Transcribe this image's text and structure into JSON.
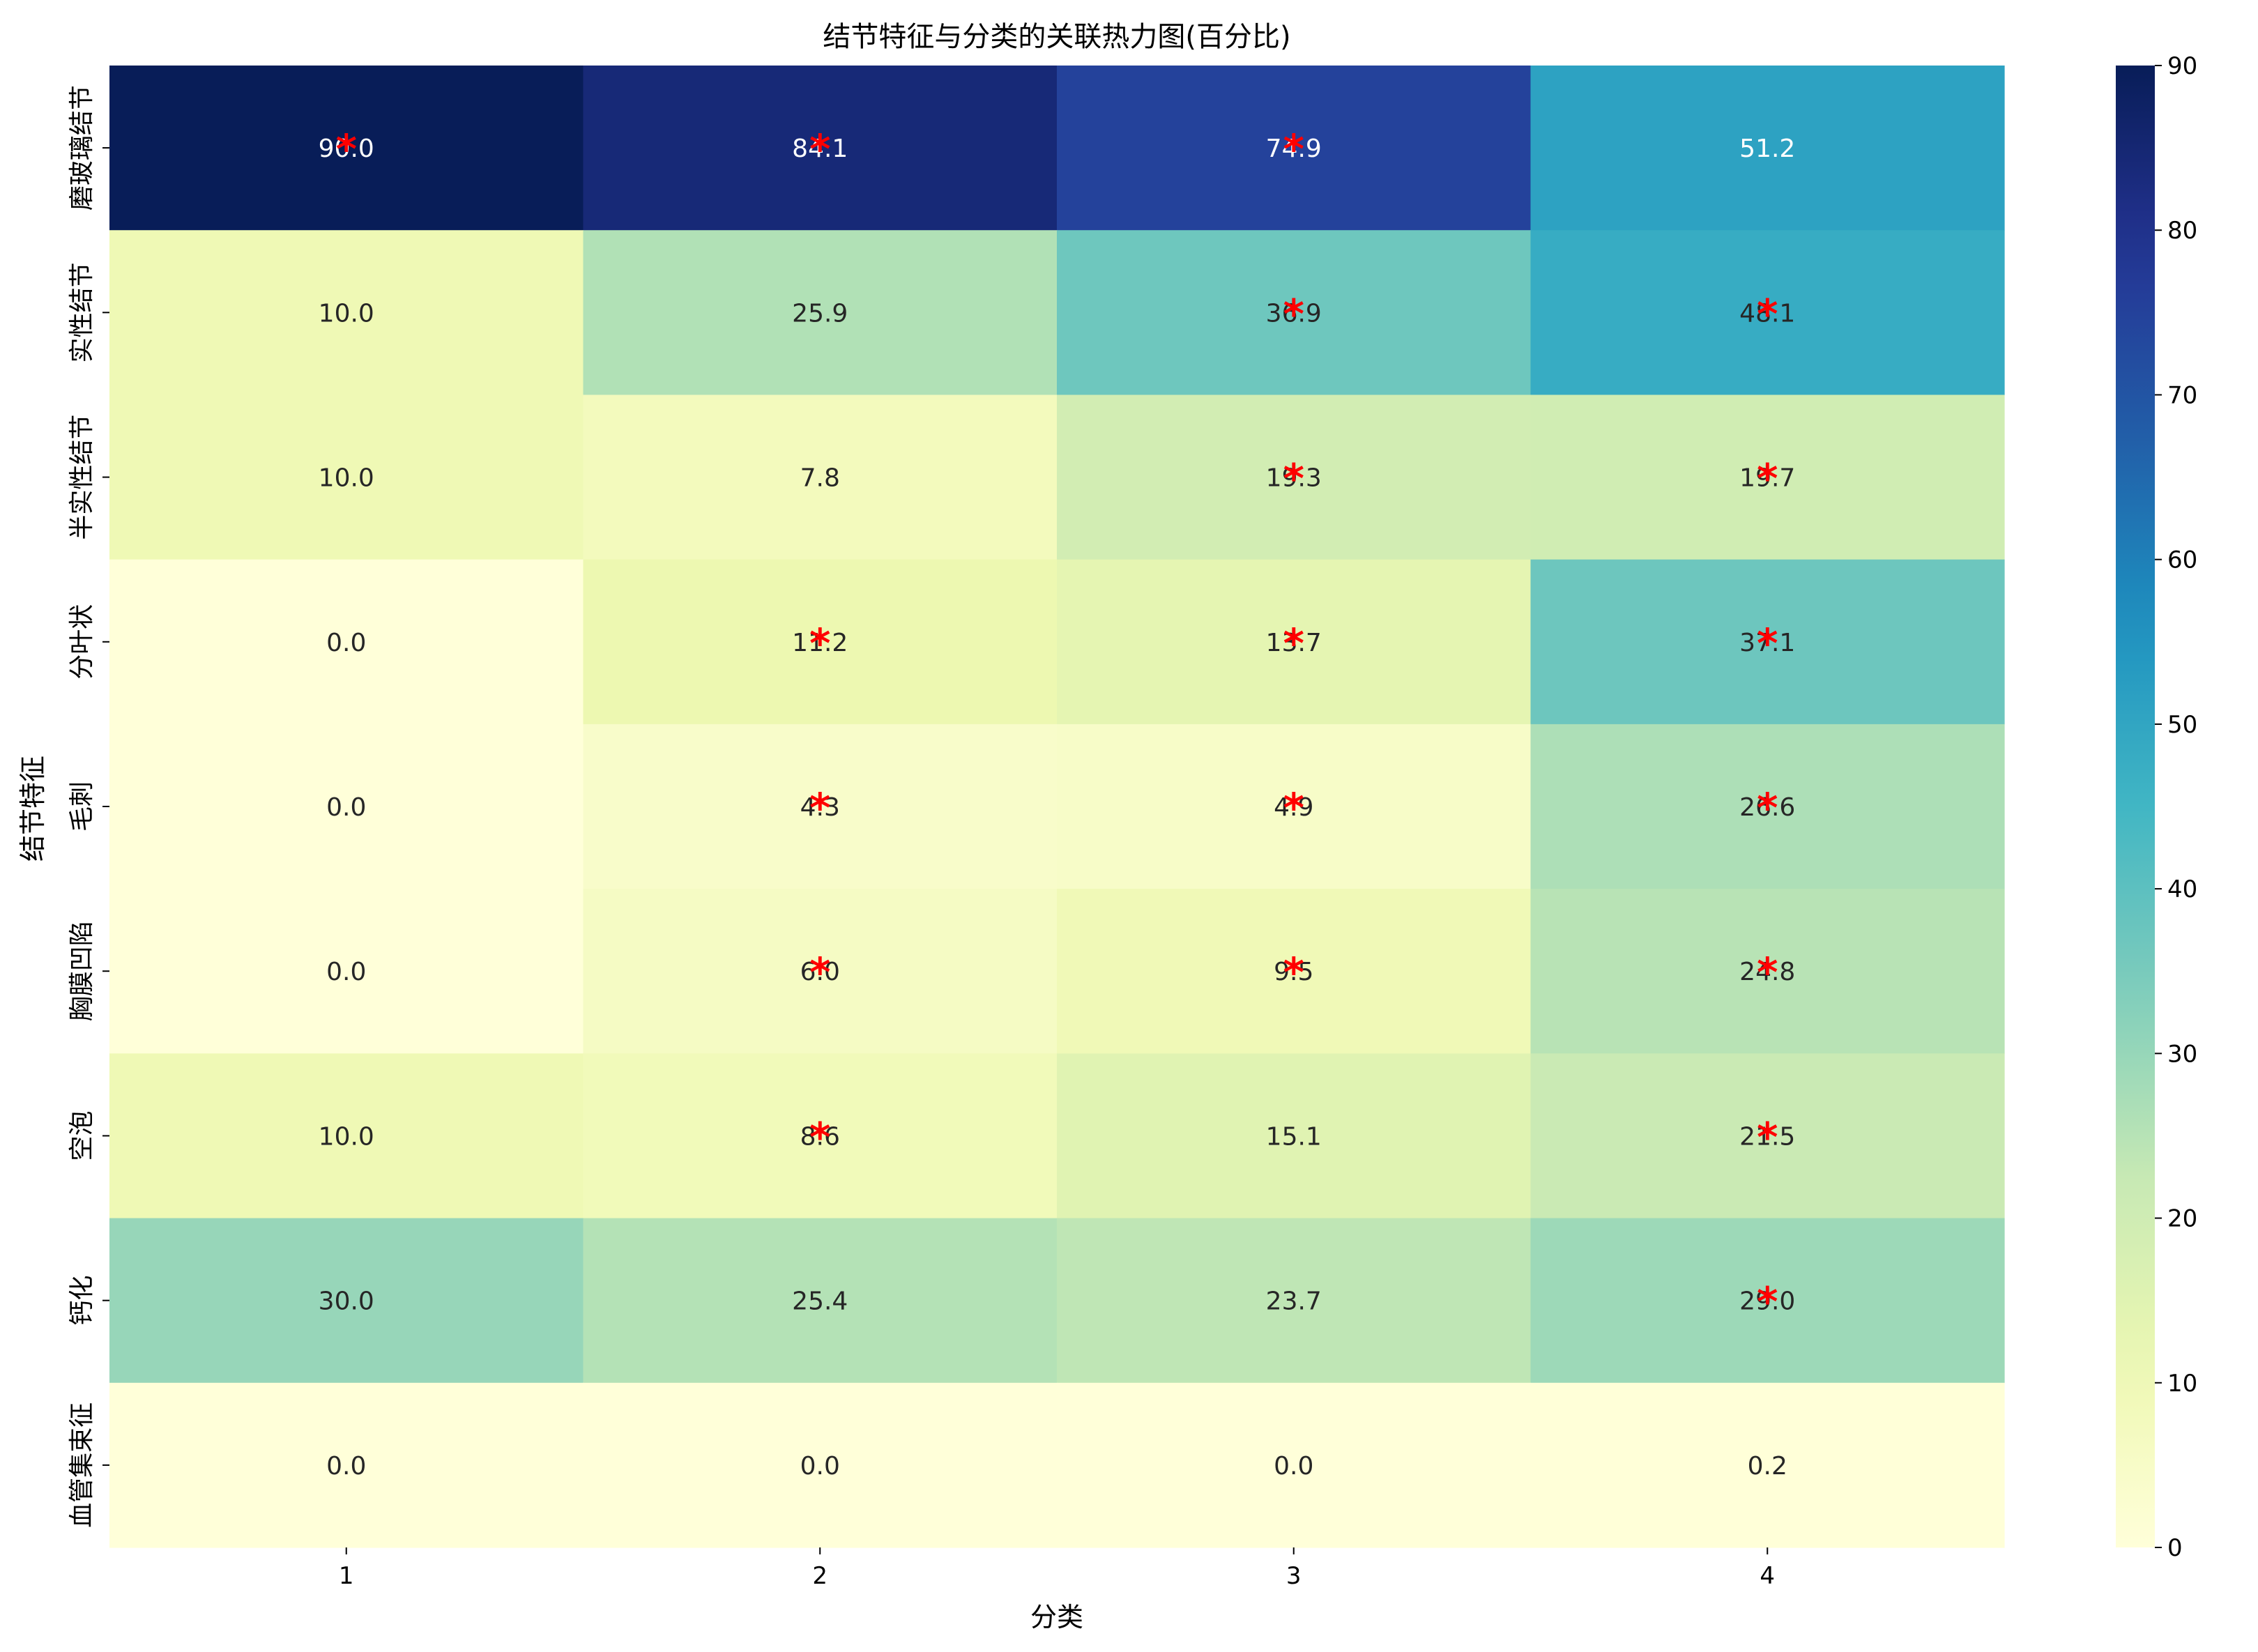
{
  "chart_data": {
    "type": "heatmap",
    "title": "结节特征与分类的关联热力图(百分比)",
    "xlabel": "分类",
    "ylabel": "结节特征",
    "x_categories": [
      "1",
      "2",
      "3",
      "4"
    ],
    "y_categories": [
      "磨玻璃结节",
      "实性结节",
      "半实性结节",
      "分叶状",
      "毛刺",
      "胸膜凹陷",
      "空泡",
      "钙化",
      "血管集束征"
    ],
    "values": [
      [
        90.0,
        84.1,
        74.9,
        51.2
      ],
      [
        10.0,
        25.9,
        36.9,
        48.1
      ],
      [
        10.0,
        7.8,
        19.3,
        19.7
      ],
      [
        0.0,
        11.2,
        13.7,
        37.1
      ],
      [
        0.0,
        4.3,
        4.9,
        26.6
      ],
      [
        0.0,
        6.0,
        9.5,
        24.8
      ],
      [
        10.0,
        8.6,
        15.1,
        21.5
      ],
      [
        30.0,
        25.4,
        23.7,
        29.0
      ],
      [
        0.0,
        0.0,
        0.0,
        0.2
      ]
    ],
    "significance_marker": "*",
    "significant": [
      [
        true,
        true,
        true,
        false
      ],
      [
        false,
        false,
        true,
        true
      ],
      [
        false,
        false,
        true,
        true
      ],
      [
        false,
        true,
        true,
        true
      ],
      [
        false,
        true,
        true,
        true
      ],
      [
        false,
        true,
        true,
        true
      ],
      [
        false,
        true,
        false,
        true
      ],
      [
        false,
        false,
        false,
        true
      ],
      [
        false,
        false,
        false,
        false
      ]
    ],
    "value_format": "0.0",
    "colormap": "YlGnBu",
    "color_range": [
      0,
      90
    ],
    "colorbar_ticks": [
      0,
      10,
      20,
      30,
      40,
      50,
      60,
      70,
      80,
      90
    ],
    "colors": {
      "marker": "#ff0000",
      "text_dark": "#262626",
      "text_light": "#ffffff"
    }
  }
}
